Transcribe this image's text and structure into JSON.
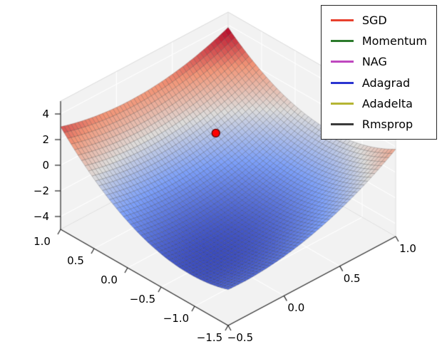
{
  "chart_data": {
    "type": "surface",
    "description": "3D saddle-shaped loss surface rendered with a coolwarm colormap, a red start-point marker, and a legend listing gradient-descent optimizers",
    "surface": {
      "colormap": "coolwarm",
      "colormap_stops": [
        [
          0.0,
          "#3b4cc0"
        ],
        [
          0.25,
          "#7c9ff9"
        ],
        [
          0.5,
          "#dddcdb"
        ],
        [
          0.75,
          "#f29577"
        ],
        [
          1.0,
          "#b40426"
        ]
      ],
      "x_range": [
        -1.5,
        1.0
      ],
      "y_range": [
        -0.5,
        1.0
      ],
      "z_range": [
        -5,
        5
      ],
      "grid_divisions": 48,
      "formula": "f(u,v) = a + b*u + c*u^2 + e*u*v + g*v + d*v^2 (u,v = x,y normalized to [-1,1])",
      "coefficients": {
        "a": -2.0,
        "b": 1.8,
        "c": 2.4,
        "e": -0.8,
        "g": 1.2,
        "d": 1.2
      }
    },
    "marker": {
      "x": 0.35,
      "y": 0.5,
      "color": "#ff0000",
      "edge_color": "#550000"
    },
    "axes": {
      "x": {
        "ticks": [
          {
            "label": "1.0",
            "value": 1.0
          },
          {
            "label": "0.5",
            "value": 0.5
          },
          {
            "label": "0.0",
            "value": 0.0
          },
          {
            "label": "−0.5",
            "value": -0.5
          },
          {
            "label": "−1.0",
            "value": -1.0
          },
          {
            "label": "−1.5",
            "value": -1.5
          }
        ]
      },
      "y": {
        "ticks": [
          {
            "label": "−0.5",
            "value": -0.5
          },
          {
            "label": "0.0",
            "value": 0.0
          },
          {
            "label": "0.5",
            "value": 0.5
          },
          {
            "label": "1.0",
            "value": 1.0
          }
        ]
      },
      "z": {
        "ticks": [
          {
            "label": "4",
            "value": 4
          },
          {
            "label": "2",
            "value": 2
          },
          {
            "label": "0",
            "value": 0
          },
          {
            "label": "−2",
            "value": -2
          },
          {
            "label": "−4",
            "value": -4
          }
        ]
      }
    },
    "legend": {
      "position": "upper right",
      "entries": [
        {
          "label": "SGD",
          "color": "#e8402e",
          "line_style": "solid"
        },
        {
          "label": "Momentum",
          "color": "#2c7a2c",
          "line_style": "solid"
        },
        {
          "label": "NAG",
          "color": "#bf47bf",
          "line_style": "solid"
        },
        {
          "label": "Adagrad",
          "color": "#2b35d0",
          "line_style": "solid"
        },
        {
          "label": "Adadelta",
          "color": "#b5b533",
          "line_style": "solid"
        },
        {
          "label": "Rmsprop",
          "color": "#3a3a3a",
          "line_style": "solid"
        }
      ]
    },
    "colors": {
      "background": "#ffffff",
      "pane": "#f2f2f2",
      "grid_line": "#ffffff",
      "spine": "#222222",
      "pane_edge": "#d9d9d9",
      "mesh_edge": "rgba(20,20,20,0.38)"
    }
  }
}
